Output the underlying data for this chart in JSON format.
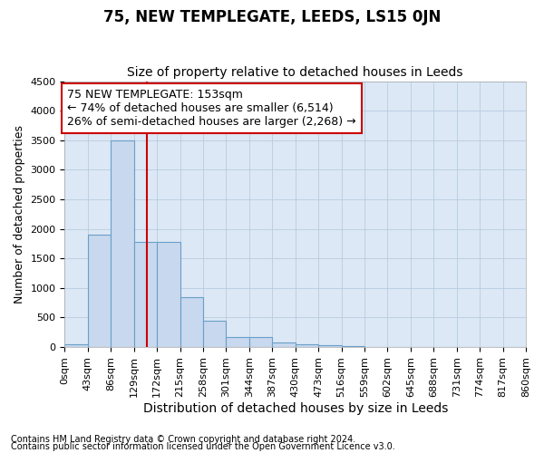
{
  "title": "75, NEW TEMPLEGATE, LEEDS, LS15 0JN",
  "subtitle": "Size of property relative to detached houses in Leeds",
  "xlabel": "Distribution of detached houses by size in Leeds",
  "ylabel": "Number of detached properties",
  "bin_edges": [
    0,
    43,
    86,
    129,
    172,
    215,
    258,
    301,
    344,
    387,
    430,
    473,
    516,
    559,
    602,
    645,
    688,
    731,
    774,
    817,
    860
  ],
  "bar_heights": [
    50,
    1900,
    3500,
    1775,
    1775,
    850,
    450,
    175,
    175,
    85,
    55,
    30,
    10,
    5,
    3,
    2,
    1,
    1,
    0,
    0
  ],
  "bar_color": "#c8d8ee",
  "bar_edge_color": "#6b9fc8",
  "red_line_x": 153,
  "red_line_color": "#cc0000",
  "annotation_text": "75 NEW TEMPLEGATE: 153sqm\n← 74% of detached houses are smaller (6,514)\n26% of semi-detached houses are larger (2,268) →",
  "annotation_box_facecolor": "#ffffff",
  "annotation_box_edgecolor": "#cc0000",
  "ylim": [
    0,
    4500
  ],
  "yticks": [
    0,
    500,
    1000,
    1500,
    2000,
    2500,
    3000,
    3500,
    4000,
    4500
  ],
  "xtick_labels": [
    "0sqm",
    "43sqm",
    "86sqm",
    "129sqm",
    "172sqm",
    "215sqm",
    "258sqm",
    "301sqm",
    "344sqm",
    "387sqm",
    "430sqm",
    "473sqm",
    "516sqm",
    "559sqm",
    "602sqm",
    "645sqm",
    "688sqm",
    "731sqm",
    "774sqm",
    "817sqm",
    "860sqm"
  ],
  "footnote1": "Contains HM Land Registry data © Crown copyright and database right 2024.",
  "footnote2": "Contains public sector information licensed under the Open Government Licence v3.0.",
  "fig_bg_color": "#ffffff",
  "plot_bg_color": "#dce8f5",
  "grid_color": "#b8cce0",
  "title_fontsize": 12,
  "subtitle_fontsize": 10,
  "xlabel_fontsize": 10,
  "ylabel_fontsize": 9,
  "tick_fontsize": 8,
  "annotation_fontsize": 9,
  "footnote_fontsize": 7
}
